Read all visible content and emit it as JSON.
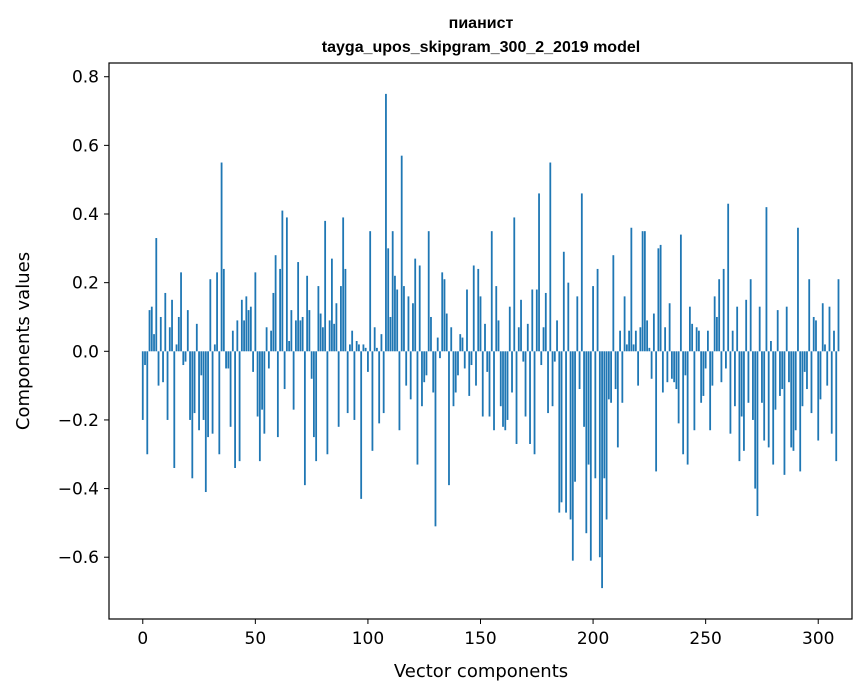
{
  "chart_data": {
    "type": "bar",
    "title": "пианист",
    "subtitle": "tayga_upos_skipgram_300_2_2019 model",
    "xlabel": "Vector components",
    "ylabel": "Components values",
    "xlim": [
      -15,
      315
    ],
    "ylim": [
      -0.78,
      0.84
    ],
    "xticks": [
      0,
      50,
      100,
      150,
      200,
      250,
      300
    ],
    "xtick_labels": [
      "0",
      "50",
      "100",
      "150",
      "200",
      "250",
      "300"
    ],
    "yticks": [
      -0.6,
      -0.4,
      -0.2,
      0.0,
      0.2,
      0.4,
      0.6,
      0.8
    ],
    "ytick_labels": [
      "−0.6",
      "−0.4",
      "−0.2",
      "0.0",
      "0.2",
      "0.4",
      "0.6",
      "0.8"
    ],
    "grid": false,
    "bar_color": "#1f77b4",
    "values": [
      -0.2,
      -0.04,
      -0.3,
      0.12,
      0.13,
      0.05,
      0.33,
      -0.1,
      0.1,
      -0.09,
      0.17,
      -0.2,
      0.07,
      0.15,
      -0.34,
      0.02,
      0.1,
      0.23,
      -0.04,
      -0.03,
      0.12,
      -0.2,
      -0.37,
      -0.18,
      0.08,
      -0.23,
      -0.07,
      -0.2,
      -0.41,
      -0.25,
      0.21,
      -0.24,
      0.02,
      0.23,
      -0.3,
      0.55,
      0.24,
      -0.05,
      -0.05,
      -0.22,
      0.06,
      -0.34,
      0.09,
      -0.32,
      0.15,
      0.09,
      0.16,
      0.12,
      0.13,
      -0.06,
      0.23,
      -0.19,
      -0.32,
      -0.17,
      -0.24,
      0.07,
      -0.05,
      0.06,
      0.17,
      0.28,
      -0.25,
      0.24,
      0.41,
      -0.11,
      0.39,
      0.03,
      0.12,
      -0.17,
      0.09,
      0.26,
      0.09,
      0.1,
      -0.39,
      0.22,
      0.12,
      -0.08,
      -0.25,
      -0.32,
      0.19,
      0.11,
      0.07,
      0.38,
      -0.3,
      0.09,
      0.27,
      0.08,
      0.14,
      -0.22,
      0.19,
      0.39,
      0.24,
      -0.18,
      0.02,
      0.06,
      -0.2,
      0.03,
      0.02,
      -0.43,
      0.02,
      0.01,
      -0.06,
      0.35,
      -0.29,
      0.07,
      0.01,
      -0.21,
      0.05,
      -0.18,
      0.75,
      0.3,
      0.1,
      0.35,
      0.22,
      0.18,
      -0.23,
      0.57,
      0.19,
      -0.1,
      0.16,
      -0.14,
      0.14,
      0.27,
      -0.33,
      0.25,
      -0.16,
      -0.09,
      -0.07,
      0.35,
      0.1,
      -0.12,
      -0.51,
      0.04,
      -0.02,
      0.23,
      0.21,
      0.11,
      -0.39,
      0.07,
      -0.16,
      -0.12,
      -0.07,
      0.05,
      0.04,
      -0.05,
      0.18,
      -0.13,
      -0.04,
      0.25,
      -0.1,
      0.24,
      0.16,
      -0.19,
      0.08,
      -0.06,
      -0.19,
      0.35,
      -0.23,
      0.19,
      0.09,
      -0.16,
      -0.22,
      -0.23,
      -0.2,
      0.13,
      -0.12,
      0.39,
      -0.27,
      0.07,
      0.15,
      -0.03,
      -0.19,
      0.08,
      -0.27,
      0.18,
      -0.3,
      0.18,
      0.46,
      -0.04,
      0.07,
      0.17,
      -0.18,
      0.55,
      -0.16,
      -0.03,
      0.09,
      -0.47,
      -0.44,
      0.29,
      -0.47,
      0.2,
      -0.49,
      -0.61,
      -0.38,
      0.16,
      -0.11,
      0.46,
      -0.22,
      -0.53,
      -0.33,
      -0.61,
      0.19,
      -0.37,
      0.24,
      -0.6,
      -0.69,
      -0.37,
      -0.49,
      -0.14,
      -0.15,
      0.28,
      -0.11,
      -0.28,
      0.06,
      -0.15,
      0.16,
      0.02,
      0.06,
      0.36,
      0.02,
      0.06,
      -0.1,
      0.07,
      0.35,
      0.35,
      0.09,
      0.01,
      -0.08,
      0.11,
      -0.35,
      0.3,
      0.31,
      -0.12,
      0.07,
      -0.09,
      0.14,
      -0.08,
      -0.09,
      -0.11,
      -0.21,
      0.34,
      -0.3,
      -0.07,
      -0.33,
      0.13,
      0.08,
      -0.23,
      0.07,
      0.06,
      -0.15,
      -0.13,
      -0.05,
      0.06,
      -0.23,
      -0.1,
      0.16,
      0.1,
      0.21,
      -0.09,
      0.24,
      -0.05,
      0.43,
      -0.24,
      0.06,
      -0.16,
      0.13,
      -0.32,
      -0.19,
      -0.29,
      0.15,
      -0.15,
      0.21,
      -0.2,
      -0.4,
      -0.48,
      0.13,
      -0.15,
      -0.26,
      0.42,
      -0.28,
      0.03,
      -0.33,
      -0.17,
      0.12,
      -0.13,
      -0.11,
      -0.36,
      0.13,
      -0.09,
      -0.28,
      -0.29,
      -0.23,
      0.36,
      -0.35,
      -0.16,
      -0.06,
      -0.11,
      0.21,
      -0.18,
      0.1,
      0.09,
      -0.26,
      -0.14,
      0.14,
      0.02,
      -0.1,
      0.13,
      -0.24,
      0.06,
      -0.32,
      0.21
    ]
  }
}
